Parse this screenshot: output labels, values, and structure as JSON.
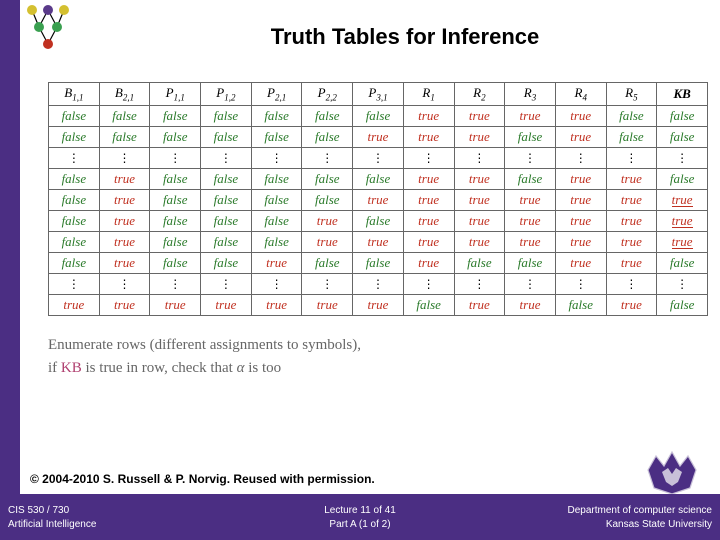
{
  "title": "Truth Tables for Inference",
  "credit": "© 2004-2010 S. Russell & P. Norvig. Reused with permission.",
  "caption": {
    "line1": "Enumerate rows (different assignments to symbols),",
    "line2_a": "if ",
    "line2_kb": "KB",
    "line2_b": " is true in row, check that ",
    "line2_alpha": "α",
    "line2_c": " is too"
  },
  "footer": {
    "left_line1": "CIS 530 / 730",
    "left_line2": "Artificial Intelligence",
    "center_line1": "Lecture 11 of 41",
    "center_line2": "Part A (1 of 2)",
    "right_line1": "Department of computer science",
    "right_line2": "Kansas State University"
  },
  "table": {
    "headers": [
      {
        "sym": "B",
        "sub": "1,1"
      },
      {
        "sym": "B",
        "sub": "2,1"
      },
      {
        "sym": "P",
        "sub": "1,1"
      },
      {
        "sym": "P",
        "sub": "1,2"
      },
      {
        "sym": "P",
        "sub": "2,1"
      },
      {
        "sym": "P",
        "sub": "2,2"
      },
      {
        "sym": "P",
        "sub": "3,1"
      },
      {
        "sym": "R",
        "sub": "1"
      },
      {
        "sym": "R",
        "sub": "2"
      },
      {
        "sym": "R",
        "sub": "3"
      },
      {
        "sym": "R",
        "sub": "4"
      },
      {
        "sym": "R",
        "sub": "5"
      },
      {
        "sym": "KB",
        "sub": ""
      }
    ],
    "rows": [
      {
        "type": "data",
        "underline_last": false,
        "cells": [
          "false",
          "false",
          "false",
          "false",
          "false",
          "false",
          "false",
          "true",
          "true",
          "true",
          "true",
          "false",
          "false"
        ]
      },
      {
        "type": "data",
        "underline_last": false,
        "cells": [
          "false",
          "false",
          "false",
          "false",
          "false",
          "false",
          "true",
          "true",
          "true",
          "false",
          "true",
          "false",
          "false"
        ]
      },
      {
        "type": "dots"
      },
      {
        "type": "data",
        "underline_last": false,
        "cells": [
          "false",
          "true",
          "false",
          "false",
          "false",
          "false",
          "false",
          "true",
          "true",
          "false",
          "true",
          "true",
          "false"
        ]
      },
      {
        "type": "data",
        "underline_last": true,
        "cells": [
          "false",
          "true",
          "false",
          "false",
          "false",
          "false",
          "true",
          "true",
          "true",
          "true",
          "true",
          "true",
          "true"
        ]
      },
      {
        "type": "data",
        "underline_last": true,
        "cells": [
          "false",
          "true",
          "false",
          "false",
          "false",
          "true",
          "false",
          "true",
          "true",
          "true",
          "true",
          "true",
          "true"
        ]
      },
      {
        "type": "data",
        "underline_last": true,
        "cells": [
          "false",
          "true",
          "false",
          "false",
          "false",
          "true",
          "true",
          "true",
          "true",
          "true",
          "true",
          "true",
          "true"
        ]
      },
      {
        "type": "data",
        "underline_last": false,
        "cells": [
          "false",
          "true",
          "false",
          "false",
          "true",
          "false",
          "false",
          "true",
          "false",
          "false",
          "true",
          "true",
          "false"
        ]
      },
      {
        "type": "dots"
      },
      {
        "type": "data",
        "underline_last": false,
        "cells": [
          "true",
          "true",
          "true",
          "true",
          "true",
          "true",
          "true",
          "false",
          "true",
          "true",
          "false",
          "true",
          "false"
        ]
      }
    ]
  },
  "colors": {
    "sidebar": "#4b2e83",
    "true": "#c03020",
    "false": "#2a7a2a",
    "caption": "#666666"
  }
}
